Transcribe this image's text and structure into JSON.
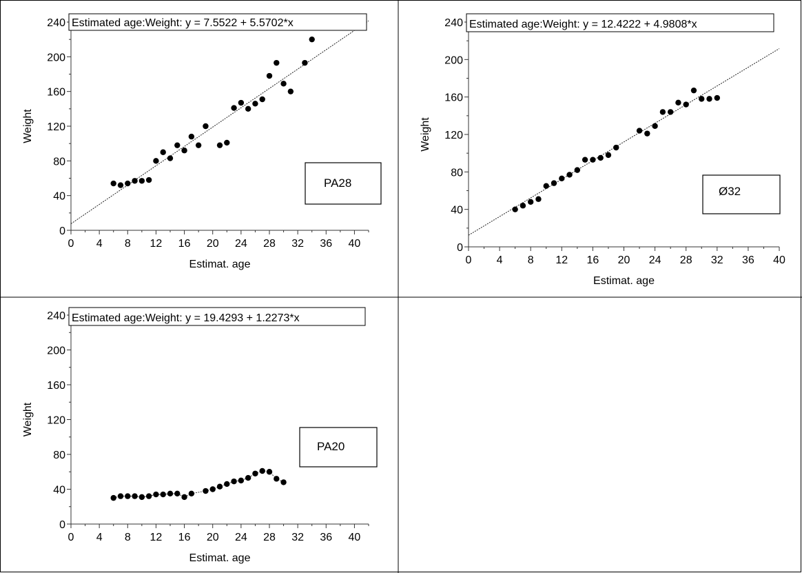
{
  "chart_data": [
    {
      "type": "scatter",
      "equation": "Estimated age:Weight: y = 7.5522 + 5.5702*x",
      "xlabel": "Estimat. age",
      "ylabel": "Weight",
      "xlim": [
        0,
        42
      ],
      "ylim": [
        0,
        240
      ],
      "xticks": [
        0,
        4,
        8,
        12,
        16,
        20,
        24,
        28,
        32,
        36,
        40
      ],
      "yticks": [
        0,
        40,
        80,
        120,
        160,
        200,
        240
      ],
      "fit": {
        "intercept": 7.5522,
        "slope": 5.5702,
        "x_range": [
          0,
          42
        ]
      },
      "label_box": "PA28",
      "points": [
        [
          6,
          54
        ],
        [
          7,
          52
        ],
        [
          8,
          54
        ],
        [
          9,
          57
        ],
        [
          10,
          57
        ],
        [
          11,
          58
        ],
        [
          12,
          80
        ],
        [
          13,
          90
        ],
        [
          14,
          83
        ],
        [
          15,
          98
        ],
        [
          16,
          92
        ],
        [
          17,
          108
        ],
        [
          18,
          98
        ],
        [
          19,
          120
        ],
        [
          21,
          98
        ],
        [
          22,
          101
        ],
        [
          23,
          141
        ],
        [
          24,
          147
        ],
        [
          25,
          140
        ],
        [
          26,
          146
        ],
        [
          27,
          151
        ],
        [
          28,
          178
        ],
        [
          29,
          193
        ],
        [
          30,
          169
        ],
        [
          31,
          160
        ],
        [
          33,
          193
        ],
        [
          34,
          220
        ]
      ]
    },
    {
      "type": "scatter",
      "equation": "Estimated age:Weight: y = 12.4222 + 4.9808*x",
      "xlabel": "Estimat. age",
      "ylabel": "Weight",
      "xlim": [
        0,
        40
      ],
      "ylim": [
        0,
        240
      ],
      "xticks": [
        0,
        4,
        8,
        12,
        16,
        20,
        24,
        28,
        32,
        36,
        40
      ],
      "yticks": [
        0,
        40,
        80,
        120,
        160,
        200,
        240
      ],
      "fit": {
        "intercept": 12.4222,
        "slope": 4.9808,
        "x_range": [
          0,
          40
        ]
      },
      "label_box": "Ø32",
      "points": [
        [
          6,
          40
        ],
        [
          7,
          44
        ],
        [
          8,
          48
        ],
        [
          9,
          51
        ],
        [
          10,
          65
        ],
        [
          11,
          68
        ],
        [
          12,
          73
        ],
        [
          13,
          77
        ],
        [
          14,
          82
        ],
        [
          15,
          93
        ],
        [
          16,
          93
        ],
        [
          17,
          95
        ],
        [
          18,
          98
        ],
        [
          19,
          106
        ],
        [
          22,
          124
        ],
        [
          23,
          121
        ],
        [
          24,
          129
        ],
        [
          25,
          144
        ],
        [
          26,
          144
        ],
        [
          27,
          154
        ],
        [
          28,
          152
        ],
        [
          29,
          167
        ],
        [
          30,
          158
        ],
        [
          31,
          158
        ],
        [
          32,
          159
        ]
      ]
    },
    {
      "type": "scatter",
      "equation": "Estimated age:Weight: y = 19.4293 + 1.2273*x",
      "xlabel": "Estimat. age",
      "ylabel": "Weight",
      "xlim": [
        0,
        42
      ],
      "ylim": [
        0,
        240
      ],
      "xticks": [
        0,
        4,
        8,
        12,
        16,
        20,
        24,
        28,
        32,
        36,
        40
      ],
      "yticks": [
        0,
        40,
        80,
        120,
        160,
        200,
        240
      ],
      "label_box": "PA20",
      "connected": true,
      "points": [
        [
          6,
          30
        ],
        [
          7,
          32
        ],
        [
          8,
          32
        ],
        [
          9,
          32
        ],
        [
          10,
          31
        ],
        [
          11,
          32
        ],
        [
          12,
          34
        ],
        [
          13,
          34
        ],
        [
          14,
          35
        ],
        [
          15,
          35
        ],
        [
          16,
          31
        ],
        [
          17,
          35
        ],
        [
          19,
          38
        ],
        [
          20,
          40
        ],
        [
          21,
          43
        ],
        [
          22,
          46
        ],
        [
          23,
          49
        ],
        [
          24,
          50
        ],
        [
          25,
          53
        ],
        [
          26,
          58
        ],
        [
          27,
          61
        ],
        [
          28,
          60
        ],
        [
          29,
          52
        ],
        [
          30,
          48
        ]
      ]
    }
  ]
}
